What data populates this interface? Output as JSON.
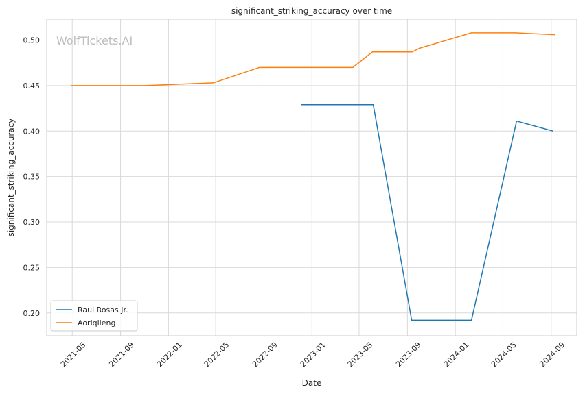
{
  "watermark": "WolfTickets.AI",
  "chart_data": {
    "type": "line",
    "title": "significant_striking_accuracy over time",
    "xlabel": "Date",
    "ylabel": "significant_striking_accuracy",
    "xlim": [
      "2021-02-25",
      "2024-11-05"
    ],
    "ylim": [
      0.175,
      0.523
    ],
    "grid": true,
    "legend_position": "lower-left",
    "x_ticks": [
      "2021-05",
      "2021-09",
      "2022-01",
      "2022-05",
      "2022-09",
      "2023-01",
      "2023-05",
      "2023-09",
      "2024-01",
      "2024-05",
      "2024-09"
    ],
    "y_ticks": [
      "0.20",
      "0.25",
      "0.30",
      "0.35",
      "0.40",
      "0.45",
      "0.50"
    ],
    "series": [
      {
        "name": "Raul Rosas Jr.",
        "color": "#1f77b4",
        "points": [
          {
            "x": "2022-12-05",
            "y": 0.429
          },
          {
            "x": "2023-06-06",
            "y": 0.429
          },
          {
            "x": "2023-09-12",
            "y": 0.192
          },
          {
            "x": "2024-02-11",
            "y": 0.192
          },
          {
            "x": "2024-06-05",
            "y": 0.411
          },
          {
            "x": "2024-09-06",
            "y": 0.4
          }
        ]
      },
      {
        "name": "Aoriqileng",
        "color": "#ff7f0e",
        "points": [
          {
            "x": "2021-04-27",
            "y": 0.45
          },
          {
            "x": "2021-11-01",
            "y": 0.45
          },
          {
            "x": "2022-04-25",
            "y": 0.453
          },
          {
            "x": "2022-08-20",
            "y": 0.47
          },
          {
            "x": "2023-04-15",
            "y": 0.47
          },
          {
            "x": "2023-06-04",
            "y": 0.487
          },
          {
            "x": "2023-09-13",
            "y": 0.487
          },
          {
            "x": "2023-10-01",
            "y": 0.491
          },
          {
            "x": "2024-02-11",
            "y": 0.508
          },
          {
            "x": "2024-06-01",
            "y": 0.508
          },
          {
            "x": "2024-09-10",
            "y": 0.506
          }
        ]
      }
    ]
  }
}
